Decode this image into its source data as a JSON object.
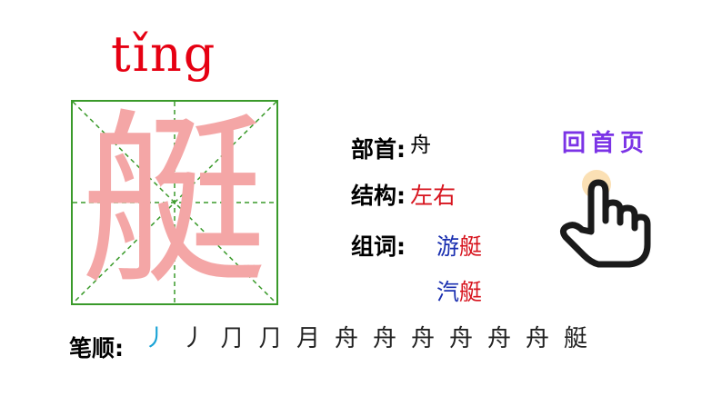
{
  "pinyin": "tǐng",
  "character": "艇",
  "radical": {
    "label": "部首:",
    "value": "舟"
  },
  "structure": {
    "label": "结构:",
    "value": "左右"
  },
  "words": {
    "label": "组词:",
    "items": [
      {
        "first": "游",
        "second": "艇"
      },
      {
        "first": "汽",
        "second": "艇"
      }
    ]
  },
  "stroke_order": {
    "label": "笔顺:",
    "steps": [
      "丿",
      "丿",
      "⺆",
      "⺆",
      "月",
      "舟",
      "舟",
      "舟",
      "舟",
      "舟",
      "舟",
      "艇"
    ]
  },
  "home_button": {
    "label": "回首页",
    "icon": "pointing-hand-icon"
  },
  "colors": {
    "pinyin": "#e60012",
    "grid": "#3a9a2a",
    "character": "#f4a6a6",
    "word_first": "#1a2fb0",
    "word_second": "#d7141e",
    "home": "#7b33e6"
  }
}
